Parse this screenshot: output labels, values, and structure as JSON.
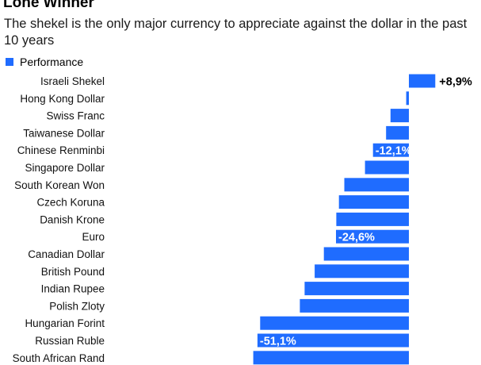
{
  "title": "Lone Winner",
  "subtitle": "The shekel is the only major currency to appreciate against the dollar in the past 10 years",
  "colors": {
    "bar": "#1f6cff",
    "label_text": "#ffffff",
    "positive_label_text": "#000000"
  },
  "chart_data": {
    "type": "bar",
    "orientation": "horizontal",
    "legend": [
      "Performance"
    ],
    "legend_position": "top-left",
    "grid": false,
    "xlim": [
      -57,
      10
    ],
    "categories": [
      "Israeli Shekel",
      "Hong Kong Dollar",
      "Swiss Franc",
      "Taiwanese Dollar",
      "Chinese Renminbi",
      "Singapore Dollar",
      "South Korean Won",
      "Czech Koruna",
      "Danish Krone",
      "Euro",
      "Canadian Dollar",
      "British Pound",
      "Indian Rupee",
      "Polish Zloty",
      "Hungarian Forint",
      "Russian Ruble",
      "South African Rand"
    ],
    "series": [
      {
        "name": "Performance",
        "values": [
          8.9,
          -0.9,
          -6.2,
          -7.7,
          -12.1,
          -14.8,
          -21.8,
          -23.6,
          -24.5,
          -24.6,
          -28.7,
          -31.8,
          -35.2,
          -36.8,
          -50.2,
          -51.1,
          -52.5
        ]
      }
    ],
    "data_labels": [
      {
        "category": "Israeli Shekel",
        "text": "+8,9%"
      },
      {
        "category": "Chinese Renminbi",
        "text": "-12,1%"
      },
      {
        "category": "Euro",
        "text": "-24,6%"
      },
      {
        "category": "Russian Ruble",
        "text": "-51,1%"
      }
    ]
  }
}
